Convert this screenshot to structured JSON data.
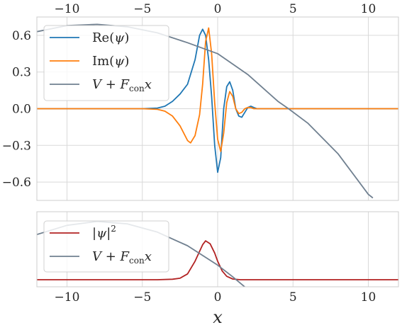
{
  "chart_data": [
    {
      "type": "line",
      "panel": "top",
      "xlim": [
        -12,
        12
      ],
      "ylim": [
        -0.75,
        0.75
      ],
      "x_ticks": [
        -10,
        -5,
        0,
        5,
        10
      ],
      "x_tick_labels": [
        "−10",
        "−5",
        "0",
        "5",
        "10"
      ],
      "x_ticks_position": "top",
      "y_ticks": [
        0.6,
        0.3,
        0.0,
        -0.3,
        -0.6
      ],
      "y_tick_labels": [
        "0.6",
        "0.3",
        "0.0",
        "−0.3",
        "−0.6"
      ],
      "grid": true,
      "legend_position": "upper-left",
      "series": [
        {
          "name": "Re(ψ)",
          "color": "#1f77b4",
          "x": [
            -12,
            -5,
            -4,
            -3.5,
            -3,
            -2.5,
            -2,
            -1.5,
            -1.2,
            -1,
            -0.8,
            -0.6,
            -0.4,
            -0.2,
            0,
            0.2,
            0.4,
            0.6,
            0.8,
            1,
            1.2,
            1.4,
            1.6,
            1.8,
            2,
            2.2,
            2.4,
            2.6,
            3,
            3.5,
            4,
            12
          ],
          "y": [
            0,
            0,
            0.005,
            0.02,
            0.06,
            0.12,
            0.2,
            0.4,
            0.6,
            0.65,
            0.6,
            0.4,
            0.1,
            -0.3,
            -0.52,
            -0.4,
            0,
            0.18,
            0.22,
            0.15,
            0,
            -0.06,
            -0.07,
            -0.03,
            0.01,
            0.02,
            0.01,
            0,
            0,
            0,
            0,
            0
          ]
        },
        {
          "name": "Im(ψ)",
          "color": "#ff7f0e",
          "x": [
            -12,
            -5,
            -4,
            -3.5,
            -3,
            -2.5,
            -2,
            -1.8,
            -1.5,
            -1.2,
            -1,
            -0.8,
            -0.6,
            -0.4,
            -0.2,
            0,
            0.2,
            0.4,
            0.6,
            0.8,
            1,
            1.2,
            1.4,
            1.6,
            1.8,
            2,
            2.2,
            2.4,
            2.6,
            3,
            3.5,
            12
          ],
          "y": [
            0,
            0,
            -0.005,
            -0.02,
            -0.06,
            -0.14,
            -0.26,
            -0.28,
            -0.22,
            -0.05,
            0.2,
            0.55,
            0.66,
            0.45,
            0.05,
            -0.25,
            -0.35,
            -0.2,
            0.05,
            0.14,
            0.1,
            0,
            -0.04,
            -0.03,
            0,
            0.01,
            0.01,
            0,
            0,
            0,
            0,
            0
          ]
        },
        {
          "name": "V + F_con x",
          "color": "#708090",
          "x": [
            -12,
            -10,
            -8,
            -6,
            -4,
            -2,
            0,
            2,
            4,
            4.7,
            6,
            8,
            10,
            10.3
          ],
          "y": [
            0.63,
            0.68,
            0.69,
            0.67,
            0.62,
            0.54,
            0.45,
            0.28,
            0.06,
            0,
            -0.12,
            -0.37,
            -0.7,
            -0.73
          ]
        }
      ]
    },
    {
      "type": "line",
      "panel": "bottom",
      "xlim": [
        -12,
        12
      ],
      "x_ticks": [
        -10,
        -5,
        0,
        5,
        10
      ],
      "x_tick_labels": [
        "−10",
        "−5",
        "0",
        "5",
        "10"
      ],
      "xlabel": "x",
      "grid": true,
      "legend_position": "upper-left",
      "series": [
        {
          "name": "|ψ|²",
          "color": "#b22222",
          "x": [
            -12,
            -4,
            -3,
            -2.5,
            -2,
            -1.5,
            -1,
            -0.8,
            -0.5,
            -0.2,
            0,
            0.3,
            0.6,
            1,
            1.5,
            2,
            12
          ],
          "y": [
            0,
            0,
            0.01,
            0.03,
            0.12,
            0.38,
            0.72,
            0.8,
            0.74,
            0.55,
            0.38,
            0.18,
            0.07,
            0.015,
            0,
            0,
            0
          ]
        },
        {
          "name": "V + F_con x",
          "color": "#708090",
          "x": [
            -12,
            -10,
            -8,
            -6,
            -4,
            -2,
            0,
            1,
            2
          ],
          "y": [
            0.93,
            1.12,
            1.2,
            1.15,
            0.98,
            0.7,
            0.3,
            0.06,
            -0.2
          ]
        }
      ]
    }
  ],
  "legend_top": [
    {
      "pre": "Re(",
      "it": "ψ",
      "post": ")"
    },
    {
      "pre": "Im(",
      "it": "ψ",
      "post": ")"
    },
    {
      "main": "V + F",
      "sub": "con",
      "tail": "x"
    }
  ],
  "legend_bottom": [
    {
      "pre": "|",
      "it": "ψ",
      "post": "|",
      "sup": "2"
    },
    {
      "main": "V + F",
      "sub": "con",
      "tail": "x"
    }
  ]
}
